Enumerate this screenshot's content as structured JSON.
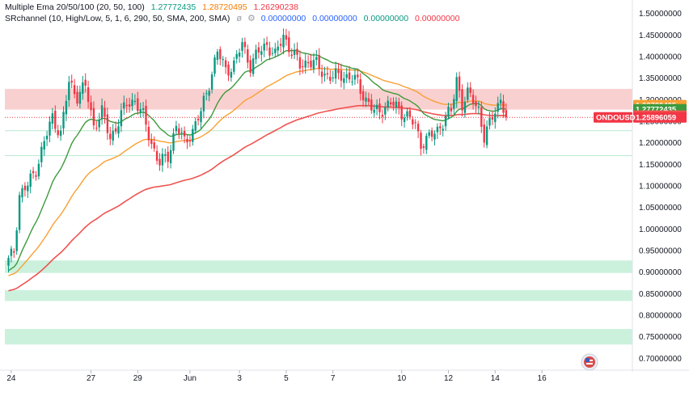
{
  "colors": {
    "up": "#089981",
    "down": "#f23645",
    "ema20": "#3d9a3d",
    "ema50": "#f7a034",
    "ema100": "#ef5350",
    "resistance_band": "#f8c4c4",
    "support_band": "#c5f0d9",
    "price_label_bg": "#f23645"
  },
  "legend": {
    "ema_title": "Multiple Ema 20/50/100 (20, 50, 100)",
    "ema20_value": "1.27772435",
    "ema50_value": "1.28720495",
    "ema100_value": "1.26290238",
    "sr_title": "SRchannel (10, High/Low, 5, 1, 6, 290, 50, SMA, 200, SMA)",
    "sr_values": [
      "0.00000000",
      "0.00000000",
      "0.00000000",
      "0.00000000"
    ],
    "eye_icon": "eye-slash-icon",
    "settings_icon": "gear-icon"
  },
  "price_labels": {
    "ema50": "1.28720495",
    "ema20": "1.27772435",
    "ema100": "1.26290238",
    "symbol": "ONDOUSD",
    "last": "1.25896059"
  },
  "chart_data": {
    "type": "candlestick",
    "symbol": "ONDOUSD",
    "ylim": [
      0.68,
      1.52
    ],
    "yticks": [
      "1.50000000",
      "1.45000000",
      "1.40000000",
      "1.35000000",
      "1.30000000",
      "1.25000000",
      "1.20000000",
      "1.15000000",
      "1.10000000",
      "1.05000000",
      "1.00000000",
      "0.95000000",
      "0.90000000",
      "0.85000000",
      "0.80000000",
      "0.75000000",
      "0.70000000"
    ],
    "ytick_values": [
      1.5,
      1.45,
      1.4,
      1.35,
      1.3,
      1.25,
      1.2,
      1.15,
      1.1,
      1.05,
      1.0,
      0.95,
      0.9,
      0.85,
      0.8,
      0.75,
      0.7
    ],
    "xticks": [
      {
        "label": "24",
        "i": 1
      },
      {
        "label": "27",
        "i": 30
      },
      {
        "label": "29",
        "i": 47
      },
      {
        "label": "Jun",
        "i": 66
      },
      {
        "label": "3",
        "i": 84
      },
      {
        "label": "5",
        "i": 101
      },
      {
        "label": "7",
        "i": 118
      },
      {
        "label": "10",
        "i": 143
      },
      {
        "label": "12",
        "i": 160
      },
      {
        "label": "14",
        "i": 177
      },
      {
        "label": "16",
        "i": 194
      }
    ],
    "bar_count": 182,
    "key_points": [
      [
        0,
        0.925
      ],
      [
        2,
        0.95
      ],
      [
        4,
        1.08
      ],
      [
        7,
        1.1
      ],
      [
        10,
        1.14
      ],
      [
        13,
        1.2
      ],
      [
        16,
        1.26
      ],
      [
        19,
        1.22
      ],
      [
        22,
        1.34
      ],
      [
        25,
        1.31
      ],
      [
        28,
        1.33
      ],
      [
        31,
        1.24
      ],
      [
        34,
        1.27
      ],
      [
        37,
        1.21
      ],
      [
        40,
        1.25
      ],
      [
        43,
        1.29
      ],
      [
        46,
        1.3
      ],
      [
        49,
        1.26
      ],
      [
        52,
        1.2
      ],
      [
        55,
        1.15
      ],
      [
        58,
        1.17
      ],
      [
        61,
        1.24
      ],
      [
        64,
        1.2
      ],
      [
        67,
        1.23
      ],
      [
        70,
        1.27
      ],
      [
        73,
        1.34
      ],
      [
        76,
        1.41
      ],
      [
        79,
        1.37
      ],
      [
        82,
        1.38
      ],
      [
        85,
        1.43
      ],
      [
        88,
        1.38
      ],
      [
        91,
        1.41
      ],
      [
        94,
        1.43
      ],
      [
        97,
        1.4
      ],
      [
        100,
        1.45
      ],
      [
        103,
        1.41
      ],
      [
        106,
        1.38
      ],
      [
        109,
        1.39
      ],
      [
        112,
        1.38
      ],
      [
        115,
        1.36
      ],
      [
        118,
        1.35
      ],
      [
        121,
        1.36
      ],
      [
        124,
        1.35
      ],
      [
        127,
        1.34
      ],
      [
        130,
        1.3
      ],
      [
        133,
        1.27
      ],
      [
        136,
        1.28
      ],
      [
        139,
        1.29
      ],
      [
        142,
        1.28
      ],
      [
        145,
        1.26
      ],
      [
        148,
        1.24
      ],
      [
        150,
        1.2
      ],
      [
        153,
        1.21
      ],
      [
        156,
        1.23
      ],
      [
        159,
        1.26
      ],
      [
        161,
        1.27
      ],
      [
        163,
        1.35
      ],
      [
        165,
        1.29
      ],
      [
        167,
        1.31
      ],
      [
        169,
        1.3
      ],
      [
        171,
        1.28
      ],
      [
        173,
        1.21
      ],
      [
        175,
        1.24
      ],
      [
        177,
        1.28
      ],
      [
        179,
        1.3
      ],
      [
        181,
        1.259
      ]
    ],
    "last_price": 1.25896059,
    "ema20_last": 1.27772435,
    "ema50_last": 1.28720495,
    "ema100_last": 1.26290238,
    "resistance_zones": [
      [
        1.277,
        1.325
      ]
    ],
    "support_zones": [
      [
        0.898,
        0.927
      ],
      [
        0.833,
        0.858
      ],
      [
        0.732,
        0.768
      ]
    ],
    "support_lines": [
      1.228,
      1.17
    ]
  }
}
